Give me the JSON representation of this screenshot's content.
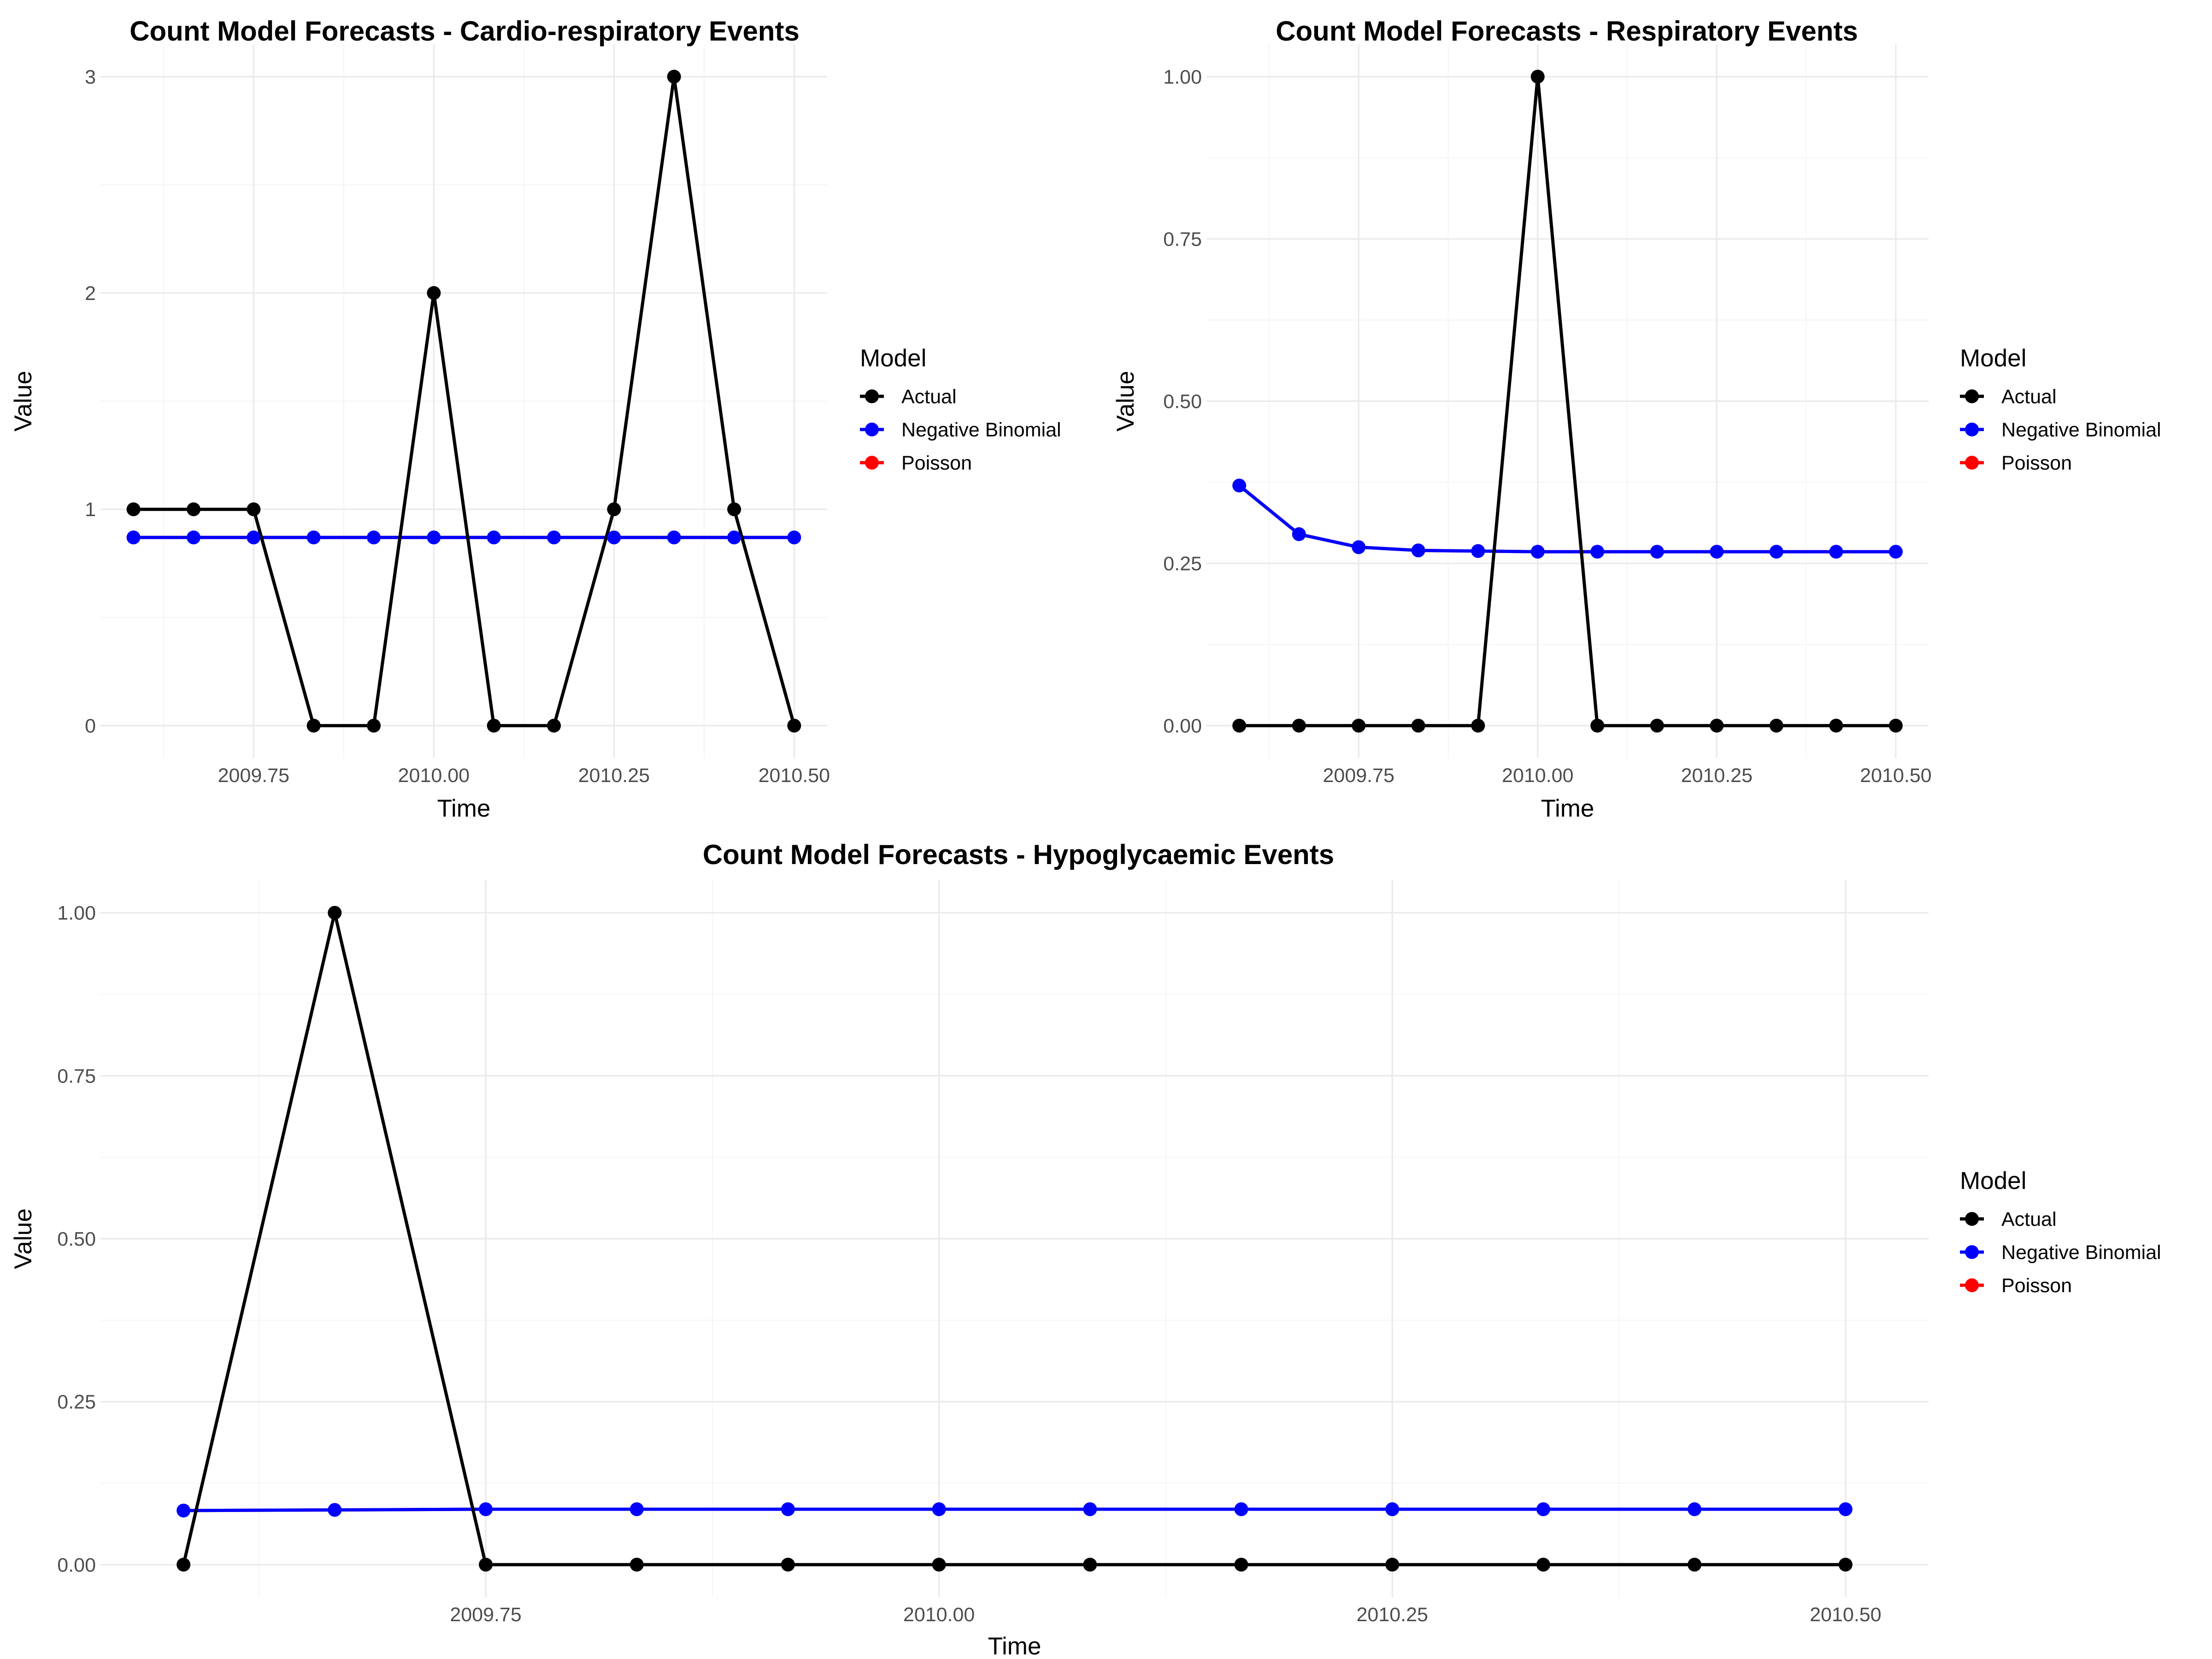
{
  "legend_title": "Model",
  "chart_data": [
    {
      "type": "line",
      "title": "Count Model Forecasts - Cardio-respiratory Events",
      "xlabel": "Time",
      "ylabel": "Value",
      "xlim": [
        2009.5833,
        2010.5
      ],
      "ylim": [
        0,
        3
      ],
      "x_ticks": [
        2009.75,
        2010.0,
        2010.25,
        2010.5
      ],
      "x_tick_labels": [
        "2009.75",
        "2010.00",
        "2010.25",
        "2010.50"
      ],
      "y_ticks": [
        0,
        1,
        2,
        3
      ],
      "y_tick_labels": [
        "0",
        "1",
        "2",
        "3"
      ],
      "grid": true,
      "legend_position": "right",
      "x": [
        2009.5833,
        2009.6667,
        2009.75,
        2009.8333,
        2009.9167,
        2010.0,
        2010.0833,
        2010.1667,
        2010.25,
        2010.3333,
        2010.4167,
        2010.5
      ],
      "series": [
        {
          "name": "Actual",
          "color": "#000000",
          "values": [
            1,
            1,
            1,
            0,
            0,
            2,
            0,
            0,
            1,
            3,
            1,
            0
          ]
        },
        {
          "name": "Negative Binomial",
          "color": "#0000ff",
          "values": [
            0.87,
            0.87,
            0.87,
            0.87,
            0.87,
            0.87,
            0.87,
            0.87,
            0.87,
            0.87,
            0.87,
            0.87
          ]
        },
        {
          "name": "Poisson",
          "color": "#ff0000",
          "values": [
            0.87,
            0.87,
            0.87,
            0.87,
            0.87,
            0.87,
            0.87,
            0.87,
            0.87,
            0.87,
            0.87,
            0.87
          ]
        }
      ]
    },
    {
      "type": "line",
      "title": "Count Model Forecasts - Respiratory Events",
      "xlabel": "Time",
      "ylabel": "Value",
      "xlim": [
        2009.5833,
        2010.5
      ],
      "ylim": [
        0,
        1
      ],
      "x_ticks": [
        2009.75,
        2010.0,
        2010.25,
        2010.5
      ],
      "x_tick_labels": [
        "2009.75",
        "2010.00",
        "2010.25",
        "2010.50"
      ],
      "y_ticks": [
        0,
        0.25,
        0.5,
        0.75,
        1
      ],
      "y_tick_labels": [
        "0.00",
        "0.25",
        "0.50",
        "0.75",
        "1.00"
      ],
      "grid": true,
      "legend_position": "right",
      "x": [
        2009.5833,
        2009.6667,
        2009.75,
        2009.8333,
        2009.9167,
        2010.0,
        2010.0833,
        2010.1667,
        2010.25,
        2010.3333,
        2010.4167,
        2010.5
      ],
      "series": [
        {
          "name": "Actual",
          "color": "#000000",
          "values": [
            0,
            0,
            0,
            0,
            0,
            1,
            0,
            0,
            0,
            0,
            0,
            0
          ]
        },
        {
          "name": "Negative Binomial",
          "color": "#0000ff",
          "values": [
            0.37,
            0.295,
            0.275,
            0.27,
            0.269,
            0.268,
            0.268,
            0.268,
            0.268,
            0.268,
            0.268,
            0.268
          ]
        },
        {
          "name": "Poisson",
          "color": "#ff0000",
          "values": [
            0.37,
            0.295,
            0.275,
            0.27,
            0.269,
            0.268,
            0.268,
            0.268,
            0.268,
            0.268,
            0.268,
            0.268
          ]
        }
      ]
    },
    {
      "type": "line",
      "title": "Count Model Forecasts - Hypoglycaemic Events",
      "xlabel": "Time",
      "ylabel": "Value",
      "xlim": [
        2009.5833,
        2010.5
      ],
      "ylim": [
        0,
        1
      ],
      "x_ticks": [
        2009.75,
        2010.0,
        2010.25,
        2010.5
      ],
      "x_tick_labels": [
        "2009.75",
        "2010.00",
        "2010.25",
        "2010.50"
      ],
      "y_ticks": [
        0,
        0.25,
        0.5,
        0.75,
        1
      ],
      "y_tick_labels": [
        "0.00",
        "0.25",
        "0.50",
        "0.75",
        "1.00"
      ],
      "grid": true,
      "legend_position": "right",
      "x": [
        2009.5833,
        2009.6667,
        2009.75,
        2009.8333,
        2009.9167,
        2010.0,
        2010.0833,
        2010.1667,
        2010.25,
        2010.3333,
        2010.4167,
        2010.5
      ],
      "series": [
        {
          "name": "Actual",
          "color": "#000000",
          "values": [
            0,
            1,
            0,
            0,
            0,
            0,
            0,
            0,
            0,
            0,
            0,
            0
          ]
        },
        {
          "name": "Negative Binomial",
          "color": "#0000ff",
          "values": [
            0.083,
            0.084,
            0.085,
            0.085,
            0.085,
            0.085,
            0.085,
            0.085,
            0.085,
            0.085,
            0.085,
            0.085
          ]
        },
        {
          "name": "Poisson",
          "color": "#ff0000",
          "values": [
            0.083,
            0.084,
            0.085,
            0.085,
            0.085,
            0.085,
            0.085,
            0.085,
            0.085,
            0.085,
            0.085,
            0.085
          ]
        }
      ]
    }
  ]
}
